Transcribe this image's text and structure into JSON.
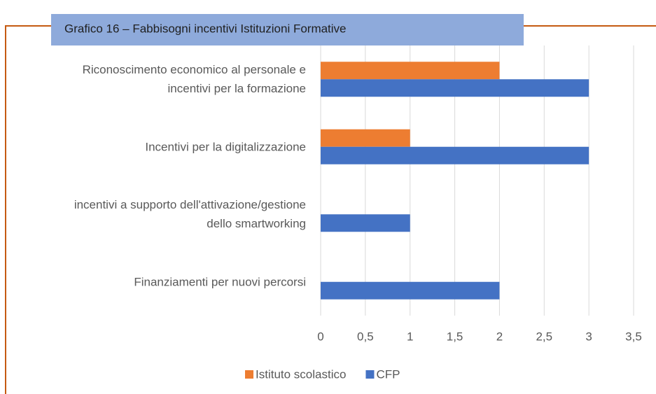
{
  "chart_data": {
    "type": "bar",
    "orientation": "horizontal",
    "title": "Grafico 16 – Fabbisogni incentivi Istituzioni Formative",
    "categories": [
      "Riconoscimento economico al personale e incentivi per la formazione",
      "Incentivi per la digitalizzazione",
      "incentivi a supporto dell'attivazione/gestione dello smartworking",
      "Finanziamenti per nuovi percorsi"
    ],
    "series": [
      {
        "name": "Istituto scolastico",
        "color": "#ed7d31",
        "values": [
          2,
          1,
          0,
          0
        ]
      },
      {
        "name": "CFP",
        "color": "#4472c4",
        "values": [
          3,
          3,
          1,
          2
        ]
      }
    ],
    "xlim": [
      0,
      3.5
    ],
    "xticks": [
      0,
      {
        "value": 0.5,
        "label": "0,5"
      },
      1,
      {
        "value": 1.5,
        "label": "1,5"
      },
      2,
      {
        "value": 2.5,
        "label": "2,5"
      },
      3,
      {
        "value": 3.5,
        "label": "3,5"
      }
    ],
    "grid": true,
    "legend": "bottom"
  }
}
